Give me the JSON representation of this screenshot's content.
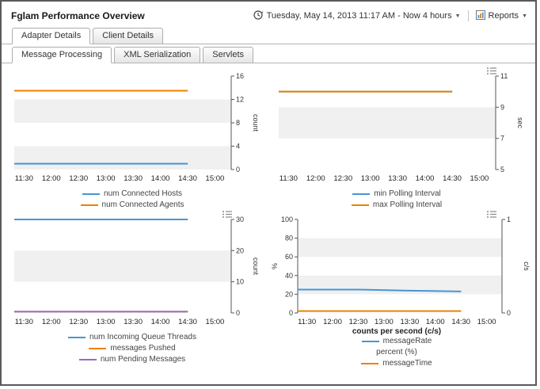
{
  "window": {
    "title": "Fglam Performance Overview"
  },
  "toolbar": {
    "time_range": "Tuesday, May 14, 2013 11:17 AM - Now 4 hours",
    "reports_label": "Reports"
  },
  "tabs_primary": [
    {
      "label": "Adapter Details",
      "active": true
    },
    {
      "label": "Client Details",
      "active": false
    }
  ],
  "tabs_secondary": [
    {
      "label": "Message Processing",
      "active": true
    },
    {
      "label": "XML Serialization",
      "active": false
    },
    {
      "label": "Servlets",
      "active": false
    }
  ],
  "colors": {
    "blue": "#4796d3",
    "orange": "#ee8100",
    "purple": "#8f6fc4",
    "band": "#f0f0f0"
  },
  "chart_data": [
    {
      "type": "line",
      "x_ticks": [
        "11:30",
        "12:00",
        "12:30",
        "13:00",
        "13:30",
        "14:00",
        "14:30",
        "15:00"
      ],
      "axes": {
        "right": {
          "label": "count",
          "min": 0,
          "max": 16,
          "ticks": [
            0,
            4,
            8,
            12,
            16
          ]
        }
      },
      "series": [
        {
          "name": "num Connected Hosts",
          "color": "#4796d3",
          "axis": "right",
          "points": [
            [
              0,
              1
            ],
            [
              0.8,
              1
            ]
          ]
        },
        {
          "name": "num Connected Agents",
          "color": "#ee8100",
          "axis": "right",
          "points": [
            [
              0,
              13.5
            ],
            [
              0.8,
              13.5
            ]
          ]
        }
      ],
      "legend": [
        {
          "label": "num Connected Hosts",
          "color": "#4796d3"
        },
        {
          "label": "num Connected Agents",
          "color": "#ee8100"
        }
      ],
      "menu_icon": false
    },
    {
      "type": "line",
      "x_ticks": [
        "11:30",
        "12:00",
        "12:30",
        "13:00",
        "13:30",
        "14:00",
        "14:30",
        "15:00"
      ],
      "axes": {
        "right": {
          "label": "sec",
          "min": 5,
          "max": 11,
          "ticks": [
            5,
            7,
            9,
            11
          ]
        }
      },
      "series": [
        {
          "name": "min Polling Interval",
          "color": "#4796d3",
          "axis": "right",
          "points": [
            [
              0,
              10
            ],
            [
              0.8,
              10
            ]
          ]
        },
        {
          "name": "max Polling Interval",
          "color": "#ee8100",
          "axis": "right",
          "points": [
            [
              0,
              10
            ],
            [
              0.8,
              10
            ]
          ]
        }
      ],
      "legend": [
        {
          "label": "min Polling Interval",
          "color": "#4796d3"
        },
        {
          "label": "max Polling Interval",
          "color": "#ee8100"
        }
      ],
      "menu_icon": true
    },
    {
      "type": "line",
      "x_ticks": [
        "11:30",
        "12:00",
        "12:30",
        "13:00",
        "13:30",
        "14:00",
        "14:30",
        "15:00"
      ],
      "axes": {
        "right": {
          "label": "count",
          "min": 0,
          "max": 30,
          "ticks": [
            0,
            10,
            20,
            30
          ]
        }
      },
      "series": [
        {
          "name": "num Incoming Queue Threads",
          "color": "#4796d3",
          "axis": "right",
          "points": [
            [
              0,
              30
            ],
            [
              0.8,
              30
            ]
          ]
        },
        {
          "name": "messages Pushed",
          "color": "#ee8100",
          "axis": "right",
          "points": [
            [
              0,
              0.4
            ],
            [
              0.8,
              0.4
            ]
          ]
        },
        {
          "name": "num Pending Messages",
          "color": "#8f6fc4",
          "axis": "right",
          "points": [
            [
              0,
              0.4
            ],
            [
              0.8,
              0.4
            ]
          ]
        }
      ],
      "legend": [
        {
          "label": "num Incoming Queue Threads",
          "color": "#4796d3"
        },
        {
          "label": "messages Pushed",
          "color": "#ee8100"
        },
        {
          "label": "num Pending Messages",
          "color": "#8f6fc4"
        }
      ],
      "menu_icon": true
    },
    {
      "type": "line",
      "x_ticks": [
        "11:30",
        "12:00",
        "12:30",
        "13:00",
        "13:30",
        "14:00",
        "14:30",
        "15:00"
      ],
      "xlabel": "counts per second (c/s)",
      "axes": {
        "left": {
          "label": "%",
          "min": 0,
          "max": 100,
          "ticks": [
            0,
            20,
            40,
            60,
            80,
            100
          ]
        },
        "right": {
          "label": "c/s",
          "min": 0,
          "max": 1,
          "ticks": [
            0,
            1
          ]
        }
      },
      "series": [
        {
          "name": "messageRate",
          "color": "#4796d3",
          "axis": "left",
          "points": [
            [
              0,
              25
            ],
            [
              0.3,
              25
            ],
            [
              0.5,
              24
            ],
            [
              0.65,
              23.5
            ],
            [
              0.8,
              23
            ]
          ]
        },
        {
          "name": "messageTime",
          "color": "#ee8100",
          "axis": "right",
          "points": [
            [
              0,
              0.02
            ],
            [
              0.8,
              0.02
            ]
          ]
        }
      ],
      "legend": [
        {
          "label": "messageRate",
          "color": "#4796d3"
        },
        {
          "label": "percent (%)",
          "color": null
        },
        {
          "label": "messageTime",
          "color": "#ee8100"
        }
      ],
      "menu_icon": true
    }
  ]
}
